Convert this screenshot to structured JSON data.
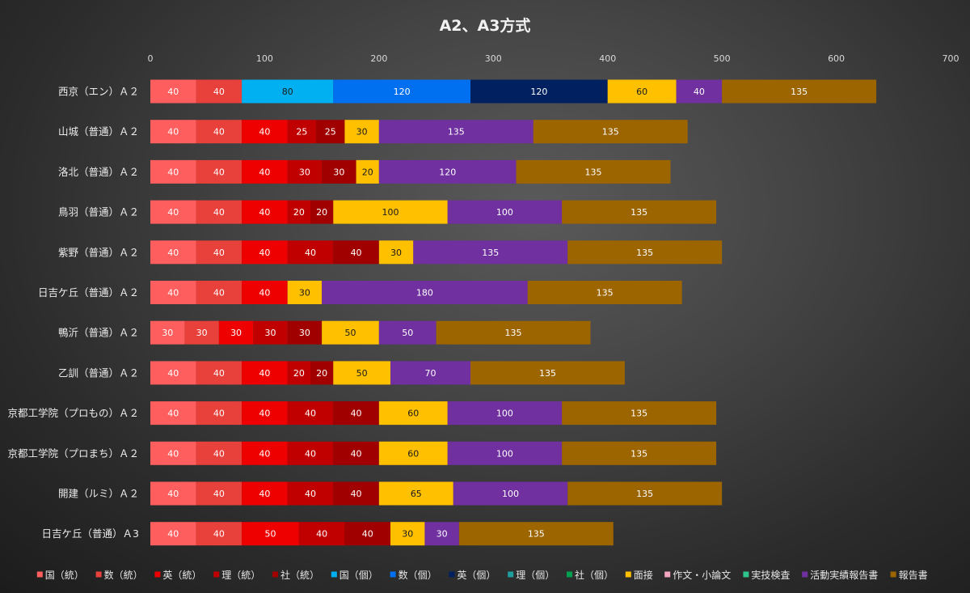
{
  "chart_data": {
    "type": "bar",
    "orientation": "horizontal",
    "stacked": true,
    "title": "A2、A3方式",
    "xlim": [
      0,
      700
    ],
    "x_ticks": [
      "0",
      "100",
      "200",
      "300",
      "400",
      "500",
      "600",
      "700"
    ],
    "legend_position": "bottom",
    "categories": [
      "西京（エン）Ａ２",
      "山城（普通）Ａ２",
      "洛北（普通）Ａ２",
      "鳥羽（普通）Ａ２",
      "紫野（普通）Ａ２",
      "日吉ケ丘（普通）Ａ２",
      "鴨沂（普通）Ａ２",
      "乙訓（普通）Ａ２",
      "京都工学院（プロもの）Ａ２",
      "京都工学院（プロまち）Ａ２",
      "開建（ルミ）Ａ２",
      "日吉ケ丘（普通）Ａ3"
    ],
    "series": [
      {
        "name": "国（統）",
        "color": "#ff5e5e",
        "label_color": "#ffffff",
        "values": [
          40,
          40,
          40,
          40,
          40,
          40,
          30,
          40,
          40,
          40,
          40,
          40
        ]
      },
      {
        "name": "数（統）",
        "color": "#e8403a",
        "label_color": "#ffffff",
        "values": [
          40,
          40,
          40,
          40,
          40,
          40,
          30,
          40,
          40,
          40,
          40,
          40
        ]
      },
      {
        "name": "英（統）",
        "color": "#ee0000",
        "label_color": "#ffffff",
        "values": [
          0,
          40,
          40,
          40,
          40,
          40,
          30,
          40,
          40,
          40,
          40,
          50
        ]
      },
      {
        "name": "理（統）",
        "color": "#c00000",
        "label_color": "#ffffff",
        "values": [
          0,
          25,
          30,
          20,
          40,
          0,
          30,
          20,
          40,
          40,
          40,
          40
        ]
      },
      {
        "name": "社（統）",
        "color": "#a00000",
        "label_color": "#ffffff",
        "values": [
          0,
          25,
          30,
          20,
          40,
          0,
          30,
          20,
          40,
          40,
          40,
          40
        ]
      },
      {
        "name": "国（個）",
        "color": "#00b0f0",
        "label_color": "#1a1a1a",
        "values": [
          80,
          0,
          0,
          0,
          0,
          0,
          0,
          0,
          0,
          0,
          0,
          0
        ]
      },
      {
        "name": "数（個）",
        "color": "#0070f0",
        "label_color": "#ffffff",
        "values": [
          120,
          0,
          0,
          0,
          0,
          0,
          0,
          0,
          0,
          0,
          0,
          0
        ]
      },
      {
        "name": "英（個）",
        "color": "#002060",
        "label_color": "#ffffff",
        "values": [
          120,
          0,
          0,
          0,
          0,
          0,
          0,
          0,
          0,
          0,
          0,
          0
        ]
      },
      {
        "name": "理（個）",
        "color": "#1f9ea0",
        "label_color": "#ffffff",
        "values": [
          0,
          0,
          0,
          0,
          0,
          0,
          0,
          0,
          0,
          0,
          0,
          0
        ]
      },
      {
        "name": "社（個）",
        "color": "#00a050",
        "label_color": "#ffffff",
        "values": [
          0,
          0,
          0,
          0,
          0,
          0,
          0,
          0,
          0,
          0,
          0,
          0
        ]
      },
      {
        "name": "面接",
        "color": "#ffc000",
        "label_color": "#1a1a1a",
        "values": [
          60,
          30,
          20,
          100,
          30,
          30,
          50,
          50,
          60,
          60,
          65,
          30
        ]
      },
      {
        "name": "作文・小論文",
        "color": "#f4a6c0",
        "label_color": "#1a1a1a",
        "values": [
          0,
          0,
          0,
          0,
          0,
          0,
          0,
          0,
          0,
          0,
          0,
          0
        ]
      },
      {
        "name": "実技検査",
        "color": "#2fc58a",
        "label_color": "#1a1a1a",
        "values": [
          0,
          0,
          0,
          0,
          0,
          0,
          0,
          0,
          0,
          0,
          0,
          0
        ]
      },
      {
        "name": "活動実績報告書",
        "color": "#7030a0",
        "label_color": "#ffffff",
        "values": [
          40,
          135,
          120,
          100,
          135,
          180,
          50,
          70,
          100,
          100,
          100,
          30
        ]
      },
      {
        "name": "報告書",
        "color": "#9c6500",
        "label_color": "#ffffff",
        "values": [
          135,
          135,
          135,
          135,
          135,
          135,
          135,
          135,
          135,
          135,
          135,
          135
        ]
      }
    ]
  }
}
